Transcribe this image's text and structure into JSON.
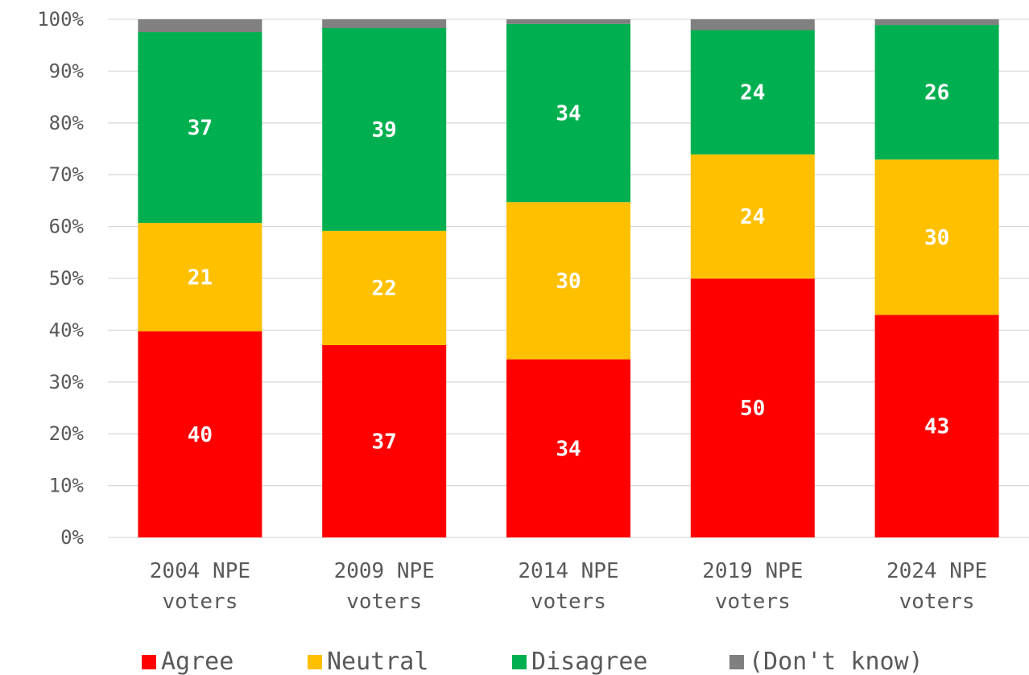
{
  "chart_data": {
    "type": "bar",
    "stacked": true,
    "percent_axis": true,
    "categories": [
      [
        "2004 NPE",
        "voters"
      ],
      [
        "2009 NPE",
        "voters"
      ],
      [
        "2014 NPE",
        "voters"
      ],
      [
        "2019 NPE",
        "voters"
      ],
      [
        "2024 NPE",
        "voters"
      ]
    ],
    "series": [
      {
        "name": "Agree",
        "color": "#ff0000",
        "values": [
          40,
          37,
          34,
          50,
          43
        ],
        "labels": [
          "40",
          "37",
          "34",
          "50",
          "43"
        ]
      },
      {
        "name": "Neutral",
        "color": "#ffc000",
        "values": [
          21,
          22,
          30,
          24,
          30
        ],
        "labels": [
          "21",
          "22",
          "30",
          "24",
          "30"
        ]
      },
      {
        "name": "Disagree",
        "color": "#00b050",
        "values": [
          37,
          39,
          34,
          24,
          26
        ],
        "labels": [
          "37",
          "39",
          "34",
          "24",
          "26"
        ]
      },
      {
        "name": "(Don't know)",
        "color": "#808080",
        "values": [
          2.5,
          1.7,
          0.9,
          2.1,
          1.1
        ],
        "labels": null
      }
    ],
    "ylim": [
      0,
      100
    ],
    "yticks": [
      "0%",
      "10%",
      "20%",
      "30%",
      "40%",
      "50%",
      "60%",
      "70%",
      "80%",
      "90%",
      "100%"
    ],
    "grid": true,
    "legend": "bottom",
    "title": "",
    "xlabel": "",
    "ylabel": ""
  }
}
